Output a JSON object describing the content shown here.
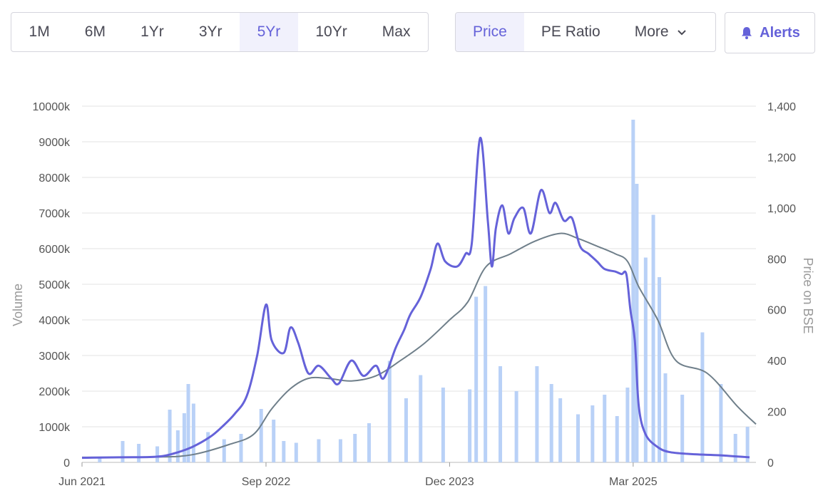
{
  "controls": {
    "ranges": [
      "1M",
      "6M",
      "1Yr",
      "3Yr",
      "5Yr",
      "10Yr",
      "Max"
    ],
    "active_range": "5Yr",
    "metrics": [
      "Price",
      "PE Ratio"
    ],
    "active_metric": "Price",
    "more_label": "More",
    "alerts_label": "Alerts"
  },
  "colors": {
    "price": "#6562d9",
    "dma": "#6f7f8a",
    "volume": "#b9d1f7",
    "grid": "#e3e3e3"
  },
  "chart_data": {
    "type": "bar+line",
    "x_ticks": [
      "Jun 2021",
      "Sep 2022",
      "Dec 2023",
      "Mar 2025"
    ],
    "x_range": [
      "2021-06-01",
      "2025-12-31"
    ],
    "y_left": {
      "label": "Volume",
      "ticks": [
        "0",
        "1000k",
        "2000k",
        "3000k",
        "4000k",
        "5000k",
        "6000k",
        "7000k",
        "8000k",
        "9000k",
        "10000k"
      ],
      "range": [
        0,
        10000
      ]
    },
    "y_right": {
      "label": "Price on BSE",
      "ticks": [
        "0",
        "200",
        "400",
        "600",
        "800",
        "1,000",
        "1,200",
        "1,400"
      ],
      "range": [
        0,
        1400
      ]
    },
    "series": [
      {
        "kind": "line",
        "unit": "price",
        "points": [
          [
            "2021-06-01",
            18
          ],
          [
            "2021-09-01",
            20
          ],
          [
            "2021-12-01",
            22
          ],
          [
            "2022-01-15",
            35
          ],
          [
            "2022-03-01",
            60
          ],
          [
            "2022-04-15",
            100
          ],
          [
            "2022-05-15",
            140
          ],
          [
            "2022-06-15",
            190
          ],
          [
            "2022-07-15",
            260
          ],
          [
            "2022-08-10",
            420
          ],
          [
            "2022-09-01",
            620
          ],
          [
            "2022-09-15",
            480
          ],
          [
            "2022-10-15",
            430
          ],
          [
            "2022-11-01",
            530
          ],
          [
            "2022-11-20",
            470
          ],
          [
            "2022-12-15",
            350
          ],
          [
            "2023-01-10",
            380
          ],
          [
            "2023-02-10",
            330
          ],
          [
            "2023-03-01",
            310
          ],
          [
            "2023-04-01",
            400
          ],
          [
            "2023-05-01",
            340
          ],
          [
            "2023-06-01",
            380
          ],
          [
            "2023-06-20",
            330
          ],
          [
            "2023-07-20",
            450
          ],
          [
            "2023-08-10",
            520
          ],
          [
            "2023-08-25",
            580
          ],
          [
            "2023-09-20",
            650
          ],
          [
            "2023-10-15",
            760
          ],
          [
            "2023-11-01",
            860
          ],
          [
            "2023-11-20",
            790
          ],
          [
            "2023-12-20",
            770
          ],
          [
            "2024-01-10",
            820
          ],
          [
            "2024-01-25",
            860
          ],
          [
            "2024-02-15",
            1275
          ],
          [
            "2024-03-05",
            950
          ],
          [
            "2024-03-15",
            770
          ],
          [
            "2024-03-25",
            920
          ],
          [
            "2024-04-10",
            1010
          ],
          [
            "2024-04-25",
            900
          ],
          [
            "2024-05-10",
            960
          ],
          [
            "2024-06-01",
            1000
          ],
          [
            "2024-06-20",
            900
          ],
          [
            "2024-07-15",
            1070
          ],
          [
            "2024-08-05",
            980
          ],
          [
            "2024-08-20",
            1020
          ],
          [
            "2024-09-10",
            950
          ],
          [
            "2024-09-30",
            960
          ],
          [
            "2024-10-20",
            850
          ],
          [
            "2024-11-10",
            820
          ],
          [
            "2024-12-01",
            790
          ],
          [
            "2024-12-20",
            760
          ],
          [
            "2025-01-15",
            750
          ],
          [
            "2025-01-31",
            740
          ],
          [
            "2025-02-12",
            740
          ],
          [
            "2025-02-22",
            600
          ],
          [
            "2025-03-05",
            480
          ],
          [
            "2025-03-15",
            220
          ],
          [
            "2025-04-01",
            110
          ],
          [
            "2025-05-01",
            60
          ],
          [
            "2025-06-01",
            40
          ],
          [
            "2025-08-01",
            32
          ],
          [
            "2025-10-01",
            28
          ],
          [
            "2025-12-15",
            20
          ]
        ]
      },
      {
        "kind": "line",
        "unit": "price",
        "points": [
          [
            "2021-06-01",
            20
          ],
          [
            "2021-12-01",
            21
          ],
          [
            "2022-03-01",
            30
          ],
          [
            "2022-06-01",
            70
          ],
          [
            "2022-08-01",
            110
          ],
          [
            "2022-09-15",
            210
          ],
          [
            "2022-11-01",
            290
          ],
          [
            "2022-12-15",
            330
          ],
          [
            "2023-02-01",
            330
          ],
          [
            "2023-04-01",
            320
          ],
          [
            "2023-06-01",
            340
          ],
          [
            "2023-08-01",
            400
          ],
          [
            "2023-10-01",
            470
          ],
          [
            "2023-12-01",
            560
          ],
          [
            "2024-01-15",
            630
          ],
          [
            "2024-03-01",
            770
          ],
          [
            "2024-05-01",
            820
          ],
          [
            "2024-07-01",
            870
          ],
          [
            "2024-09-01",
            900
          ],
          [
            "2024-10-15",
            880
          ],
          [
            "2024-12-01",
            850
          ],
          [
            "2025-01-15",
            820
          ],
          [
            "2025-02-15",
            790
          ],
          [
            "2025-03-15",
            690
          ],
          [
            "2025-05-01",
            560
          ],
          [
            "2025-06-15",
            400
          ],
          [
            "2025-09-01",
            350
          ],
          [
            "2025-11-15",
            220
          ],
          [
            "2025-12-31",
            150
          ]
        ]
      },
      {
        "kind": "bar",
        "unit": "volume",
        "points": [
          [
            "2021-07-15",
            120
          ],
          [
            "2021-09-10",
            600
          ],
          [
            "2021-10-20",
            520
          ],
          [
            "2021-12-05",
            450
          ],
          [
            "2022-01-05",
            1480
          ],
          [
            "2022-01-25",
            900
          ],
          [
            "2022-02-10",
            1380
          ],
          [
            "2022-02-20",
            2200
          ],
          [
            "2022-03-05",
            1650
          ],
          [
            "2022-04-10",
            850
          ],
          [
            "2022-05-20",
            650
          ],
          [
            "2022-07-01",
            800
          ],
          [
            "2022-08-20",
            1500
          ],
          [
            "2022-09-20",
            1200
          ],
          [
            "2022-10-15",
            600
          ],
          [
            "2022-11-15",
            550
          ],
          [
            "2023-01-10",
            650
          ],
          [
            "2023-03-05",
            650
          ],
          [
            "2023-04-10",
            800
          ],
          [
            "2023-05-15",
            1100
          ],
          [
            "2023-07-05",
            2850
          ],
          [
            "2023-08-15",
            1800
          ],
          [
            "2023-09-20",
            2450
          ],
          [
            "2023-11-15",
            2100
          ],
          [
            "2024-01-20",
            2050
          ],
          [
            "2024-02-05",
            4650
          ],
          [
            "2024-02-28",
            4950
          ],
          [
            "2024-04-05",
            2700
          ],
          [
            "2024-05-15",
            2000
          ],
          [
            "2024-07-05",
            2700
          ],
          [
            "2024-08-10",
            2200
          ],
          [
            "2024-09-01",
            1800
          ],
          [
            "2024-10-15",
            1350
          ],
          [
            "2024-11-20",
            1600
          ],
          [
            "2024-12-20",
            1900
          ],
          [
            "2025-01-20",
            1300
          ],
          [
            "2025-02-15",
            2100
          ],
          [
            "2025-03-01",
            9620
          ],
          [
            "2025-03-10",
            7820
          ],
          [
            "2025-04-01",
            5750
          ],
          [
            "2025-04-20",
            6950
          ],
          [
            "2025-05-05",
            5200
          ],
          [
            "2025-05-20",
            2500
          ],
          [
            "2025-07-01",
            1900
          ],
          [
            "2025-08-20",
            3650
          ],
          [
            "2025-10-05",
            2200
          ],
          [
            "2025-11-10",
            800
          ],
          [
            "2025-12-10",
            1000
          ]
        ]
      }
    ]
  }
}
